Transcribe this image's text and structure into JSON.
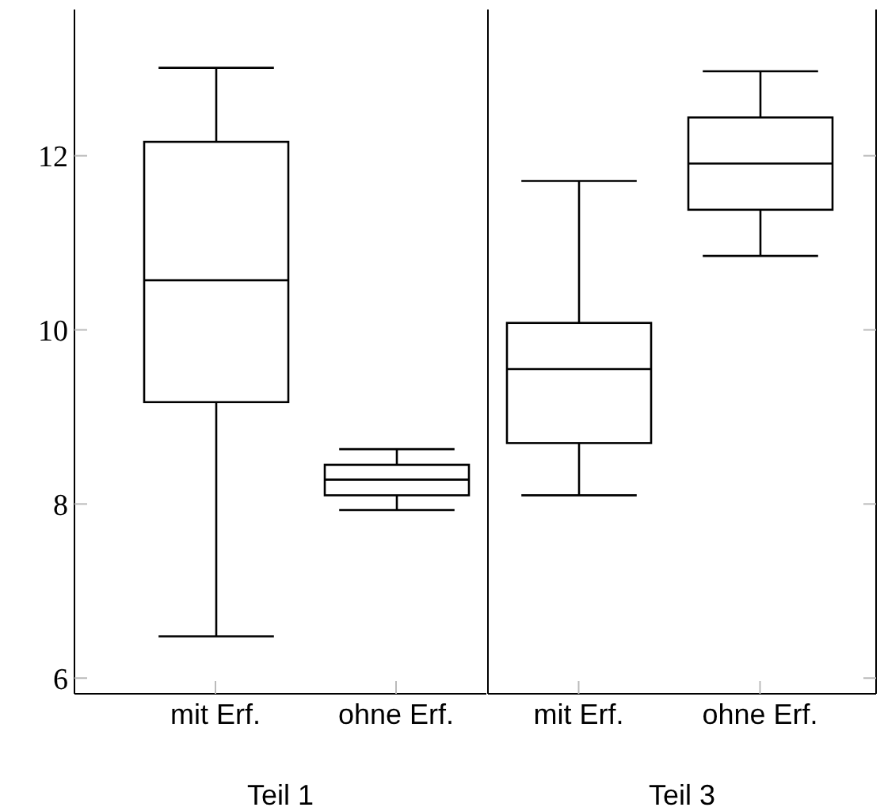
{
  "chart_data": [
    {
      "type": "box",
      "categories": [
        "mit Erf.",
        "ohne Erf."
      ],
      "xlabel": "Teil 1",
      "ylim": [
        5.82,
        13.68
      ],
      "yticks": [
        6,
        8,
        10,
        12
      ],
      "boxes": [
        {
          "low": 6.48,
          "q1": 9.17,
          "median": 10.57,
          "q3": 12.16,
          "high": 13.01
        },
        {
          "low": 7.93,
          "q1": 8.1,
          "median": 8.28,
          "q3": 8.45,
          "high": 8.63
        }
      ]
    },
    {
      "type": "box",
      "categories": [
        "mit Erf.",
        "ohne Erf."
      ],
      "xlabel": "Teil 3",
      "ylim": [
        5.82,
        13.68
      ],
      "yticks": [
        6,
        8,
        10,
        12
      ],
      "tick_labels": "x",
      "boxes": [
        {
          "low": 8.1,
          "q1": 8.7,
          "median": 9.55,
          "q3": 10.08,
          "high": 11.71
        },
        {
          "low": 10.85,
          "q1": 11.38,
          "median": 11.91,
          "q3": 12.44,
          "high": 12.97
        }
      ]
    }
  ]
}
